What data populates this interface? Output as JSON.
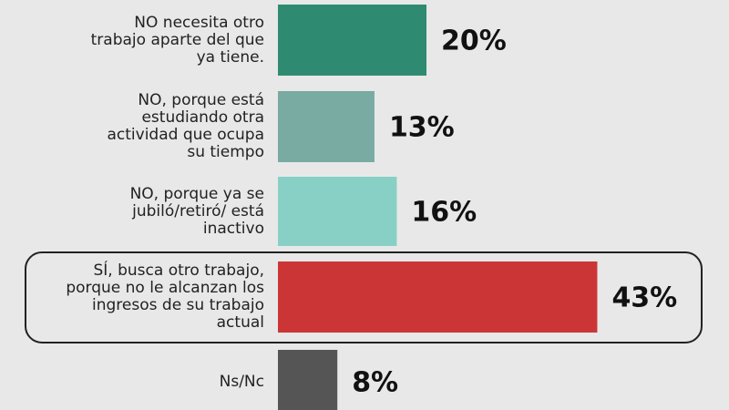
{
  "chart_data": {
    "type": "bar",
    "orientation": "horizontal",
    "categories": [
      "NO necesita otro trabajo aparte del que ya tiene.",
      "NO, porque está estudiando otra actividad que ocupa su tiempo",
      "NO, porque ya se jubiló/retiró/ está inactivo",
      "SÍ, busca otro trabajo, porque no le alcanzan los ingresos de su trabajo actual",
      "Ns/Nc"
    ],
    "values": [
      20,
      13,
      16,
      43,
      8
    ],
    "value_labels": [
      "20%",
      "13%",
      "16%",
      "43%",
      "8%"
    ],
    "colors": [
      "#2e8b72",
      "#7aaba3",
      "#88d0c5",
      "#cc3535",
      "#555555"
    ]
  }
}
